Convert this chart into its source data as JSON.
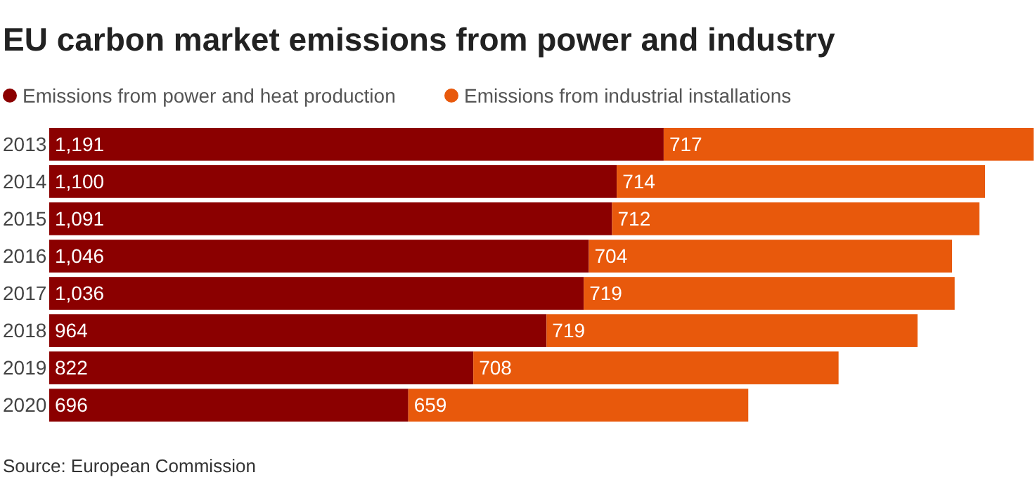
{
  "chart_data": {
    "type": "bar",
    "orientation": "horizontal",
    "stacked": true,
    "title": "EU carbon market emissions from power and industry",
    "categories": [
      "2013",
      "2014",
      "2015",
      "2016",
      "2017",
      "2018",
      "2019",
      "2020"
    ],
    "series": [
      {
        "name": "Emissions from power and heat production",
        "color": "#8b0000",
        "values": [
          1191,
          1100,
          1091,
          1046,
          1036,
          964,
          822,
          696
        ],
        "value_labels": [
          "1,191",
          "1,100",
          "1,091",
          "1,046",
          "1,036",
          "964",
          "822",
          "696"
        ]
      },
      {
        "name": "Emissions from industrial installations",
        "color": "#e8590c",
        "values": [
          717,
          714,
          712,
          704,
          719,
          719,
          708,
          659
        ],
        "value_labels": [
          "717",
          "714",
          "712",
          "704",
          "719",
          "719",
          "708",
          "659"
        ]
      }
    ],
    "legend": "top",
    "annotations": [
      "Source: European Commission"
    ]
  }
}
